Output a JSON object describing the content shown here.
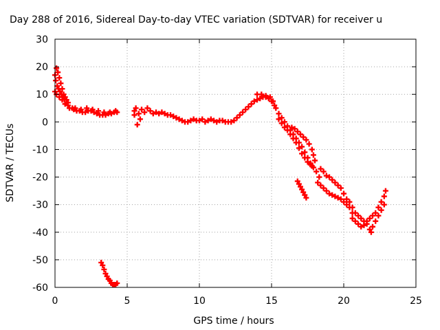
{
  "chart_data": {
    "type": "scatter",
    "title": "Day 288 of 2016, Sidereal Day-to-day VTEC variation (SDTVAR) for receiver u",
    "xlabel": "GPS time / hours",
    "ylabel": "SDTVAR / TECUs",
    "xlim": [
      0,
      25
    ],
    "ylim": [
      -60,
      30
    ],
    "x_ticks": [
      "0",
      "5",
      "10",
      "15",
      "20",
      "25"
    ],
    "y_ticks": [
      "30",
      "20",
      "10",
      "0",
      "-10",
      "-20",
      "-30",
      "-40",
      "-50",
      "-60"
    ],
    "grid": true,
    "legend": "none",
    "marker_color": "#ff0000",
    "series": [
      {
        "points": [
          [
            0.0,
            17
          ],
          [
            0.1,
            19.5
          ],
          [
            0.2,
            18
          ],
          [
            0.3,
            16
          ],
          [
            0.4,
            14
          ],
          [
            0.5,
            12
          ],
          [
            0.6,
            10
          ],
          [
            0.7,
            9
          ],
          [
            0.8,
            8
          ],
          [
            0.9,
            7
          ],
          [
            0.0,
            11
          ],
          [
            0.1,
            10
          ],
          [
            0.3,
            9
          ],
          [
            0.5,
            8
          ],
          [
            0.7,
            6.5
          ],
          [
            0.9,
            6
          ],
          [
            1.0,
            5
          ],
          [
            1.2,
            5
          ],
          [
            0.05,
            15
          ],
          [
            0.15,
            13
          ],
          [
            0.25,
            12
          ],
          [
            0.35,
            11
          ],
          [
            0.45,
            10
          ],
          [
            0.55,
            9
          ],
          [
            0.65,
            8
          ],
          [
            1.3,
            4.5
          ],
          [
            1.5,
            4
          ],
          [
            1.7,
            4
          ],
          [
            1.9,
            3.5
          ],
          [
            2.1,
            3.5
          ],
          [
            2.3,
            4
          ],
          [
            2.5,
            4
          ],
          [
            2.7,
            3.5
          ],
          [
            2.9,
            3
          ],
          [
            3.1,
            2.5
          ],
          [
            3.3,
            2.5
          ],
          [
            3.5,
            2.5
          ],
          [
            3.7,
            3
          ],
          [
            3.9,
            3
          ],
          [
            4.1,
            3.5
          ],
          [
            4.3,
            3.5
          ],
          [
            1.4,
            5
          ],
          [
            1.8,
            4.5
          ],
          [
            2.2,
            5
          ],
          [
            2.6,
            4.5
          ],
          [
            3.0,
            4
          ],
          [
            3.4,
            3.5
          ],
          [
            3.8,
            3.5
          ],
          [
            4.2,
            4
          ]
        ]
      },
      {
        "points": [
          [
            3.2,
            -51
          ],
          [
            3.3,
            -52
          ],
          [
            3.4,
            -53.5
          ],
          [
            3.5,
            -55
          ],
          [
            3.6,
            -56
          ],
          [
            3.7,
            -57
          ],
          [
            3.8,
            -57.5
          ],
          [
            3.9,
            -58.5
          ],
          [
            4.0,
            -59
          ],
          [
            4.1,
            -59
          ],
          [
            4.2,
            -59
          ],
          [
            4.3,
            -58.5
          ]
        ]
      },
      {
        "points": [
          [
            5.5,
            2.5
          ],
          [
            5.5,
            4
          ],
          [
            5.6,
            5
          ],
          [
            5.8,
            3
          ],
          [
            6.0,
            4.5
          ],
          [
            6.2,
            3.5
          ],
          [
            6.4,
            5
          ],
          [
            6.6,
            4
          ],
          [
            5.7,
            -1
          ],
          [
            5.9,
            1
          ],
          [
            6.8,
            3
          ],
          [
            7.0,
            3.5
          ],
          [
            7.2,
            3
          ],
          [
            7.4,
            3.5
          ],
          [
            7.6,
            3
          ],
          [
            7.8,
            2.5
          ],
          [
            8.0,
            2.5
          ],
          [
            8.2,
            2
          ],
          [
            8.4,
            1.5
          ],
          [
            8.6,
            1
          ],
          [
            8.8,
            0.5
          ],
          [
            9.0,
            0
          ],
          [
            9.2,
            0
          ],
          [
            9.4,
            0.5
          ],
          [
            9.6,
            1
          ],
          [
            9.8,
            0.5
          ],
          [
            10.0,
            0.5
          ],
          [
            10.2,
            1
          ],
          [
            10.4,
            0
          ],
          [
            10.6,
            0.5
          ],
          [
            10.8,
            1
          ],
          [
            11.0,
            0.5
          ],
          [
            11.2,
            0
          ],
          [
            11.4,
            0.5
          ],
          [
            11.6,
            0.5
          ],
          [
            11.8,
            0
          ],
          [
            12.0,
            0
          ],
          [
            12.2,
            0
          ],
          [
            12.4,
            0.5
          ],
          [
            12.6,
            1.5
          ],
          [
            12.8,
            2.5
          ],
          [
            13.0,
            3.5
          ],
          [
            13.2,
            4.5
          ],
          [
            13.4,
            5.5
          ],
          [
            13.6,
            6.5
          ],
          [
            13.8,
            7.5
          ],
          [
            14.0,
            8
          ],
          [
            14.2,
            8.5
          ],
          [
            14.4,
            9
          ],
          [
            14.6,
            9
          ],
          [
            14.8,
            8.5
          ],
          [
            15.0,
            7.5
          ],
          [
            15.2,
            6
          ],
          [
            14.0,
            10
          ],
          [
            14.3,
            10
          ],
          [
            14.6,
            9.5
          ],
          [
            14.9,
            9
          ],
          [
            15.1,
            7.5
          ],
          [
            15.3,
            5
          ],
          [
            15.5,
            3
          ],
          [
            15.7,
            1.5
          ],
          [
            15.9,
            0
          ],
          [
            16.1,
            -1.5
          ],
          [
            16.3,
            -3
          ],
          [
            16.5,
            -4.5
          ],
          [
            16.7,
            -6
          ],
          [
            16.9,
            -7.5
          ],
          [
            17.1,
            -9
          ],
          [
            17.3,
            -11
          ],
          [
            17.5,
            -13
          ],
          [
            17.7,
            -15
          ],
          [
            17.9,
            -16.5
          ],
          [
            18.1,
            -18
          ],
          [
            18.3,
            -20
          ],
          [
            15.5,
            1
          ],
          [
            15.7,
            -0.5
          ],
          [
            15.9,
            -2
          ],
          [
            16.1,
            -3
          ],
          [
            16.3,
            -4.5
          ],
          [
            16.5,
            -6
          ],
          [
            16.7,
            -7.5
          ],
          [
            16.9,
            -9.5
          ],
          [
            17.1,
            -11.5
          ],
          [
            17.3,
            -13
          ],
          [
            17.5,
            -14.5
          ],
          [
            17.7,
            -15.5
          ],
          [
            17.8,
            -16
          ],
          [
            16.4,
            -2
          ],
          [
            16.6,
            -2.5
          ],
          [
            16.8,
            -3.5
          ],
          [
            17.0,
            -4.5
          ],
          [
            17.2,
            -5.5
          ],
          [
            17.4,
            -6.5
          ],
          [
            17.6,
            -8
          ],
          [
            17.8,
            -10
          ],
          [
            17.9,
            -12
          ],
          [
            18.0,
            -14
          ],
          [
            18.4,
            -17
          ],
          [
            18.6,
            -18
          ],
          [
            18.8,
            -19.5
          ],
          [
            19.0,
            -20
          ],
          [
            19.2,
            -21
          ],
          [
            19.4,
            -22
          ],
          [
            19.6,
            -23
          ],
          [
            19.8,
            -24
          ],
          [
            20.0,
            -26
          ],
          [
            20.2,
            -28
          ],
          [
            20.4,
            -29
          ],
          [
            20.6,
            -31
          ],
          [
            18.2,
            -22
          ],
          [
            18.4,
            -23
          ],
          [
            18.6,
            -24
          ],
          [
            18.8,
            -25
          ],
          [
            19.0,
            -26
          ],
          [
            19.2,
            -26.5
          ],
          [
            19.4,
            -27
          ],
          [
            19.6,
            -27.5
          ],
          [
            19.8,
            -28
          ],
          [
            20.0,
            -29
          ],
          [
            20.2,
            -30
          ],
          [
            20.4,
            -31
          ],
          [
            20.6,
            -33
          ],
          [
            20.8,
            -33
          ],
          [
            21.0,
            -34
          ],
          [
            21.2,
            -35
          ],
          [
            21.4,
            -36
          ],
          [
            21.6,
            -36
          ],
          [
            21.8,
            -35
          ],
          [
            22.0,
            -34
          ],
          [
            22.2,
            -33
          ],
          [
            22.4,
            -31
          ],
          [
            22.6,
            -29
          ],
          [
            22.8,
            -27
          ],
          [
            22.9,
            -25
          ],
          [
            20.6,
            -35
          ],
          [
            20.8,
            -36
          ],
          [
            21.0,
            -37
          ],
          [
            21.2,
            -38
          ],
          [
            21.4,
            -37.5
          ],
          [
            21.6,
            -37
          ],
          [
            21.8,
            -39
          ],
          [
            21.9,
            -40
          ],
          [
            22.0,
            -38
          ],
          [
            22.2,
            -36
          ],
          [
            22.4,
            -34
          ],
          [
            22.6,
            -32
          ],
          [
            22.8,
            -30
          ]
        ]
      },
      {
        "points": [
          [
            16.8,
            -21.5
          ],
          [
            16.9,
            -22.5
          ],
          [
            17.0,
            -23.5
          ],
          [
            17.1,
            -24.5
          ],
          [
            17.2,
            -25.5
          ],
          [
            17.3,
            -26.5
          ],
          [
            17.4,
            -27.5
          ]
        ]
      }
    ]
  }
}
